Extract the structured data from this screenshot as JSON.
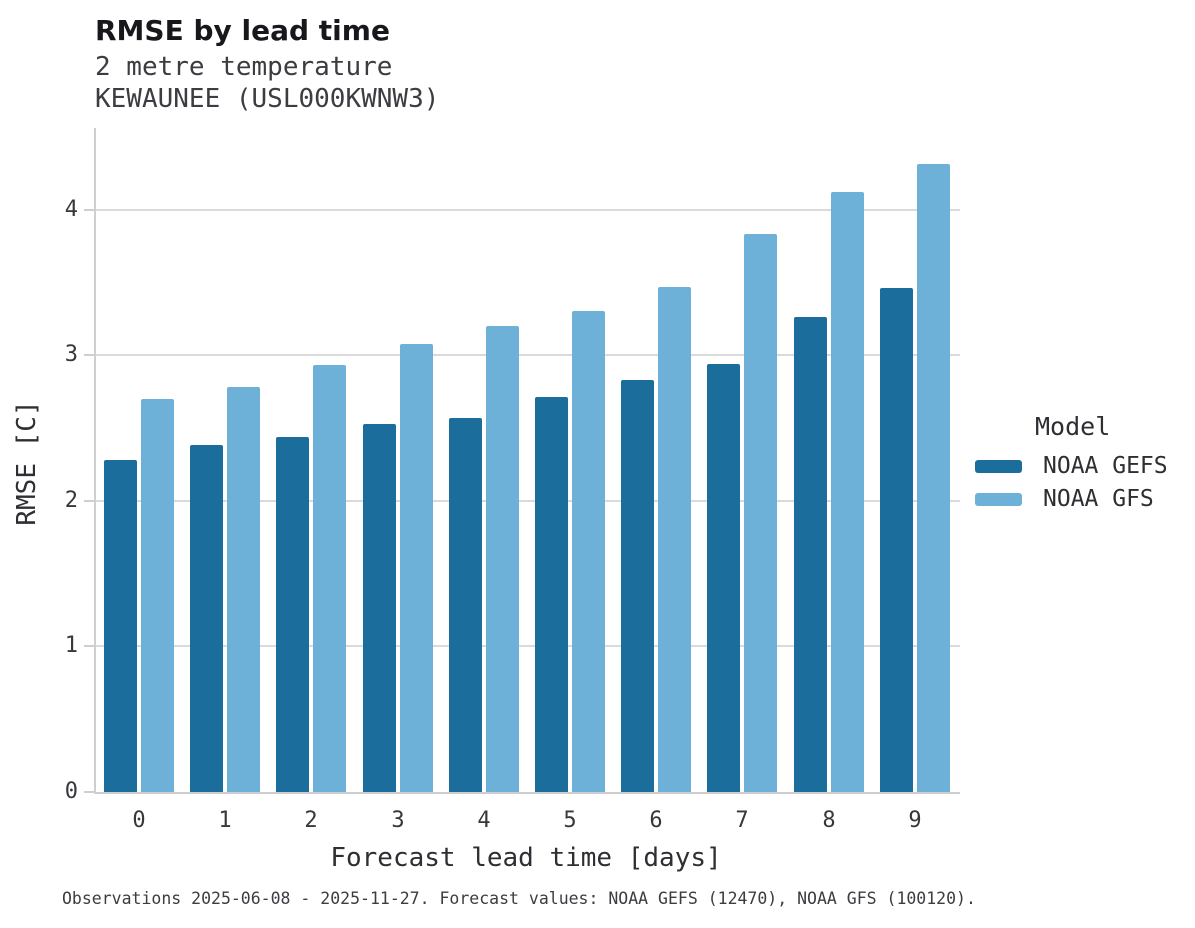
{
  "header": {
    "title": "RMSE by lead time",
    "subtitle_line1": "2 metre temperature",
    "subtitle_line2": "KEWAUNEE (USL000KWNW3)"
  },
  "axes": {
    "xlabel": "Forecast lead time [days]",
    "ylabel": "RMSE [C]"
  },
  "legend": {
    "title": "Model",
    "entries": [
      {
        "label": "NOAA GEFS",
        "color": "#1b6d9b"
      },
      {
        "label": "NOAA GFS",
        "color": "#6db1d8"
      }
    ]
  },
  "caption": "Observations 2025-06-08 - 2025-11-27. Forecast values: NOAA GEFS (12470), NOAA GFS (100120).",
  "colors": {
    "noaa_gefs": "#1b6d9b",
    "noaa_gfs": "#6db1d8",
    "gridline": "#dadada",
    "spine": "#cfcfcf"
  },
  "chart_data": {
    "type": "bar",
    "title": "RMSE by lead time",
    "subtitle": [
      "2 metre temperature",
      "KEWAUNEE (USL000KWNW3)"
    ],
    "categories": [
      0,
      1,
      2,
      3,
      4,
      5,
      6,
      7,
      8,
      9
    ],
    "series": [
      {
        "name": "NOAA GEFS",
        "color": "#1b6d9b",
        "values": [
          2.28,
          2.38,
          2.44,
          2.53,
          2.57,
          2.71,
          2.83,
          2.94,
          3.26,
          3.46
        ]
      },
      {
        "name": "NOAA GFS",
        "color": "#6db1d8",
        "values": [
          2.7,
          2.78,
          2.93,
          3.08,
          3.2,
          3.3,
          3.47,
          3.83,
          4.12,
          4.31
        ]
      }
    ],
    "xlabel": "Forecast lead time [days]",
    "ylabel": "RMSE [C]",
    "ylim": [
      0,
      4.56
    ],
    "yticks": [
      0,
      1,
      2,
      3,
      4
    ],
    "grid": true,
    "legend_title": "Model",
    "legend_position": "right",
    "caption": "Observations 2025-06-08 - 2025-11-27. Forecast values: NOAA GEFS (12470), NOAA GFS (100120)."
  }
}
